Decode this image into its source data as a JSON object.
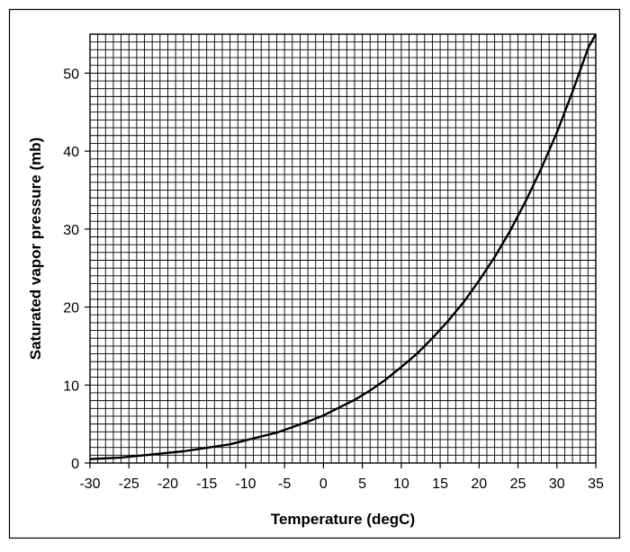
{
  "chart_data": {
    "type": "line",
    "title": "",
    "xlabel": "Temperature (degC)",
    "ylabel": "Saturated vapor pressure (mb)",
    "xlim": [
      -30,
      35
    ],
    "ylim": [
      0,
      55
    ],
    "grid": true,
    "legend": "none",
    "x_ticks": [
      -30,
      -25,
      -20,
      -15,
      -10,
      -5,
      0,
      5,
      10,
      15,
      20,
      25,
      30,
      35
    ],
    "y_ticks": [
      0,
      10,
      20,
      30,
      40,
      50
    ],
    "x_minor_step": 1,
    "y_minor_step": 1,
    "series": [
      {
        "x": [
          -30,
          -28,
          -26,
          -24,
          -22,
          -20,
          -18,
          -16,
          -14,
          -12,
          -10,
          -8,
          -6,
          -4,
          -2,
          0,
          2,
          4,
          6,
          8,
          10,
          12,
          14,
          16,
          18,
          20,
          22,
          24,
          26,
          28,
          30,
          32,
          34,
          35
        ],
        "y": [
          0.5,
          0.6,
          0.7,
          0.9,
          1.1,
          1.3,
          1.5,
          1.8,
          2.1,
          2.4,
          2.9,
          3.4,
          3.9,
          4.6,
          5.3,
          6.1,
          7.1,
          8.1,
          9.3,
          10.7,
          12.3,
          14.0,
          16.0,
          18.2,
          20.6,
          23.4,
          26.4,
          29.8,
          33.6,
          37.8,
          42.4,
          47.6,
          53.2,
          55.0
        ]
      }
    ],
    "colors": {
      "curve": "#000000",
      "grid": "#000000",
      "frame": "#000000"
    }
  }
}
